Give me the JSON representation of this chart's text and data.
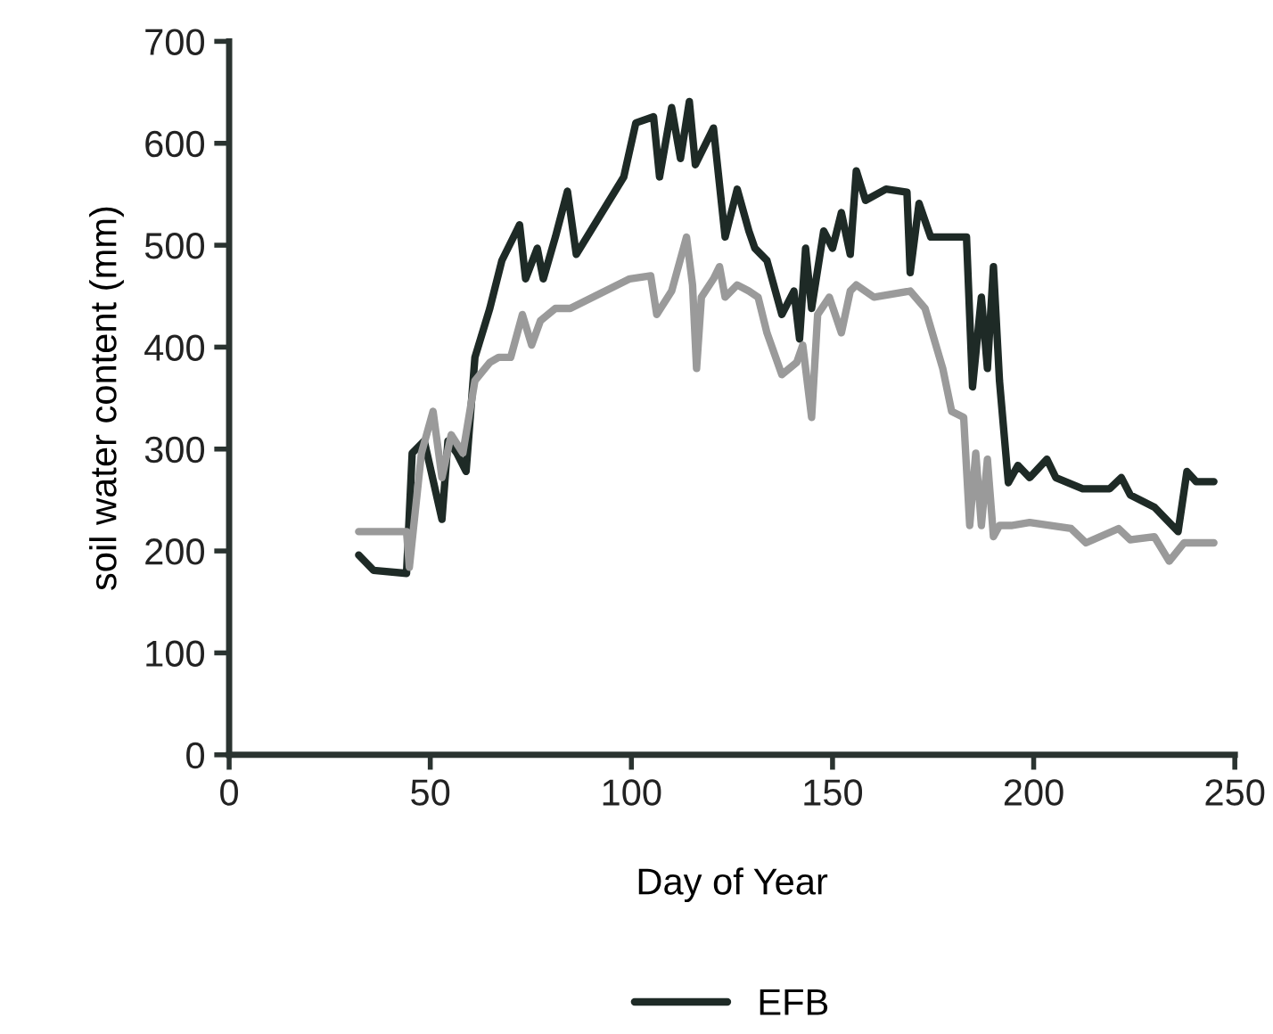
{
  "chart_data": {
    "type": "line",
    "xlabel": "Day of Year",
    "ylabel": "soil water content (mm)",
    "xlim": [
      0,
      250
    ],
    "xticks": [
      0,
      50,
      100,
      150,
      200,
      250
    ],
    "ylim": [
      0,
      700
    ],
    "yticks": [
      0,
      100,
      200,
      300,
      400,
      500,
      600,
      700
    ],
    "grid": false,
    "legend": "bottom",
    "marker": "none",
    "line_style": "solid",
    "series": [
      {
        "name": "EFB",
        "color": "#1e2a26",
        "x": [
          32.2,
          35.9,
          44.1,
          45.5,
          48.5,
          52.9,
          54.4,
          56.6,
          58.9,
          61.1,
          64.8,
          67.8,
          72.2,
          73.7,
          76.6,
          78.1,
          81.1,
          84.1,
          86.3,
          98.1,
          101.1,
          105.5,
          107,
          110,
          112.2,
          114.4,
          115.9,
          120.4,
          123.3,
          126.3,
          129.2,
          130.7,
          133.7,
          137.4,
          140.4,
          141.8,
          143.3,
          144.8,
          147.8,
          150,
          152.2,
          154.4,
          155.9,
          158.2,
          163.3,
          168.5,
          169.3,
          171.5,
          174.4,
          183.3,
          184.8,
          187,
          188.5,
          190,
          191.5,
          193.7,
          196.1,
          199,
          203.3,
          205.5,
          212.2,
          218.9,
          221.8,
          224,
          230,
          235.9,
          238.1,
          240.4,
          244.8
        ],
        "values": [
          196,
          181,
          178,
          296,
          308,
          231,
          308,
          296,
          278,
          390,
          438,
          485,
          520,
          467,
          497,
          467,
          508,
          553,
          491,
          567,
          620,
          626,
          567,
          635,
          585,
          641,
          579,
          615,
          508,
          555,
          514,
          497,
          485,
          432,
          455,
          408,
          497,
          438,
          514,
          497,
          532,
          491,
          573,
          544,
          555,
          552,
          473,
          541,
          508,
          508,
          361,
          449,
          379,
          479,
          367,
          267,
          284,
          272,
          290,
          272,
          261,
          261,
          272,
          255,
          243,
          219,
          278,
          268,
          268
        ]
      },
      {
        "color": "#9a9a9a",
        "x": [
          32.2,
          43.3,
          44.1,
          44.8,
          47.8,
          50.7,
          52.9,
          55.2,
          58.1,
          61.1,
          64.8,
          67,
          70,
          72.9,
          75.2,
          77.4,
          81.1,
          84.8,
          99.6,
          104.8,
          106.3,
          110,
          113.7,
          115.2,
          116.2,
          117.4,
          120.4,
          121.9,
          123.3,
          126.3,
          129.2,
          131.5,
          133.7,
          137.4,
          141.1,
          142.6,
          144.8,
          146.3,
          149.2,
          152.2,
          154.4,
          155.9,
          160.3,
          169.3,
          173,
          177.4,
          179.6,
          182.6,
          184.1,
          185.6,
          187,
          188.5,
          190,
          191.5,
          194.4,
          199,
          209.3,
          213,
          221.1,
          224,
          230,
          233.7,
          237.4,
          244.8
        ],
        "values": [
          219,
          219,
          219,
          184,
          296,
          337,
          272,
          314,
          296,
          367,
          385,
          390,
          390,
          432,
          402,
          426,
          438,
          438,
          467,
          470,
          432,
          455,
          508,
          461,
          379,
          449,
          467,
          479,
          449,
          461,
          455,
          449,
          414,
          373,
          385,
          402,
          331,
          432,
          449,
          414,
          455,
          461,
          449,
          455,
          438,
          379,
          337,
          331,
          225,
          296,
          225,
          290,
          214,
          225,
          225,
          228,
          222,
          208,
          222,
          211,
          214,
          190,
          208,
          208
        ]
      }
    ]
  }
}
